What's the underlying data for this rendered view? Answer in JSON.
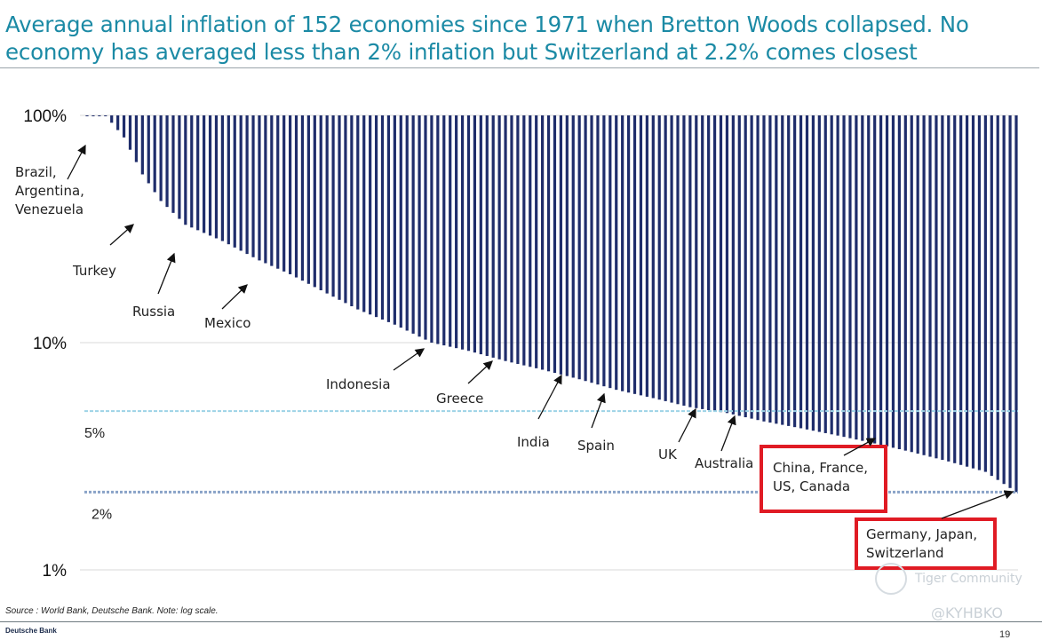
{
  "title_line1": "Average annual inflation of 152 economies since 1971 when Bretton Woods collapsed. No",
  "title_line2": "economy has averaged less than 2% inflation but Switzerland at 2.2% comes closest",
  "source": "Source : World Bank, Deutsche Bank. Note: log scale.",
  "brand": "Deutsche Bank",
  "page_number": "19",
  "watermark_text": "Tiger Community",
  "watermark_handle": "@KYHBKO",
  "colors": {
    "bar": "#1f2d6b",
    "title": "#1b8aa5",
    "ref_light": "#9dd3e6",
    "ref_dark": "#8aa3c8",
    "highlight": "#e01b24",
    "grid": "#d8d8d8"
  },
  "chart_data": {
    "type": "bar",
    "title": "Average annual inflation of 152 economies since 1971",
    "ylabel": "",
    "xlabel": "",
    "scale": "log",
    "ylim": [
      1,
      100
    ],
    "count": 152,
    "clip_top": 100,
    "yticks": [
      {
        "value": 100,
        "label": "100%"
      },
      {
        "value": 10,
        "label": "10%"
      },
      {
        "value": 1,
        "label": "1%"
      }
    ],
    "reference_lines": [
      {
        "value": 5,
        "label": "5%",
        "style": "light"
      },
      {
        "value": 2.2,
        "label": "2%",
        "style": "dark"
      }
    ],
    "anchors": [
      [
        0,
        100
      ],
      [
        3,
        100
      ],
      [
        6,
        80
      ],
      [
        9,
        55
      ],
      [
        12,
        42
      ],
      [
        16,
        33
      ],
      [
        22,
        28
      ],
      [
        28,
        23
      ],
      [
        33,
        20
      ],
      [
        38,
        17
      ],
      [
        44,
        14
      ],
      [
        50,
        12
      ],
      [
        56,
        10
      ],
      [
        62,
        9.2
      ],
      [
        68,
        8.3
      ],
      [
        74,
        7.6
      ],
      [
        80,
        6.9
      ],
      [
        86,
        6.2
      ],
      [
        92,
        5.7
      ],
      [
        98,
        5.2
      ],
      [
        104,
        4.9
      ],
      [
        110,
        4.5
      ],
      [
        116,
        4.2
      ],
      [
        122,
        3.9
      ],
      [
        128,
        3.6
      ],
      [
        134,
        3.3
      ],
      [
        140,
        3.0
      ],
      [
        146,
        2.7
      ],
      [
        151,
        2.2
      ]
    ],
    "annotations": [
      {
        "text": [
          "Brazil,",
          "Argentina,",
          "Venezuela"
        ],
        "bar": 4,
        "boxed": false
      },
      {
        "text": [
          "Turkey"
        ],
        "bar": 12,
        "boxed": false
      },
      {
        "text": [
          "Russia"
        ],
        "bar": 23,
        "boxed": false
      },
      {
        "text": [
          "Mexico"
        ],
        "bar": 42,
        "boxed": false
      },
      {
        "text": [
          "Indonesia"
        ],
        "bar": 56,
        "boxed": false
      },
      {
        "text": [
          "Greece"
        ],
        "bar": 70,
        "boxed": false
      },
      {
        "text": [
          "India"
        ],
        "bar": 82,
        "boxed": false
      },
      {
        "text": [
          "Spain"
        ],
        "bar": 90,
        "boxed": false
      },
      {
        "text": [
          "UK"
        ],
        "bar": 104,
        "boxed": false
      },
      {
        "text": [
          "Australia"
        ],
        "bar": 110,
        "boxed": false
      },
      {
        "text": [
          "China, France,",
          "US, Canada"
        ],
        "bar": 138,
        "boxed": true
      },
      {
        "text": [
          "Germany, Japan,",
          "Switzerland"
        ],
        "bar": 151,
        "boxed": true
      }
    ]
  }
}
